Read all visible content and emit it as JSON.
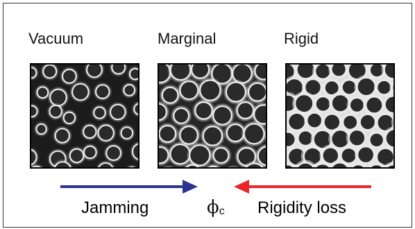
{
  "panels": [
    {
      "label": "Vacuum"
    },
    {
      "label": "Marginal"
    },
    {
      "label": "Rigid"
    }
  ],
  "arrows": {
    "jamming": {
      "label": "Jamming",
      "color": "#2b3590",
      "direction": "right"
    },
    "rigidity_loss": {
      "label": "Rigidity loss",
      "color": "#e8262a",
      "direction": "left"
    }
  },
  "critical_point": {
    "symbol": "ϕ",
    "subscript": "c"
  }
}
